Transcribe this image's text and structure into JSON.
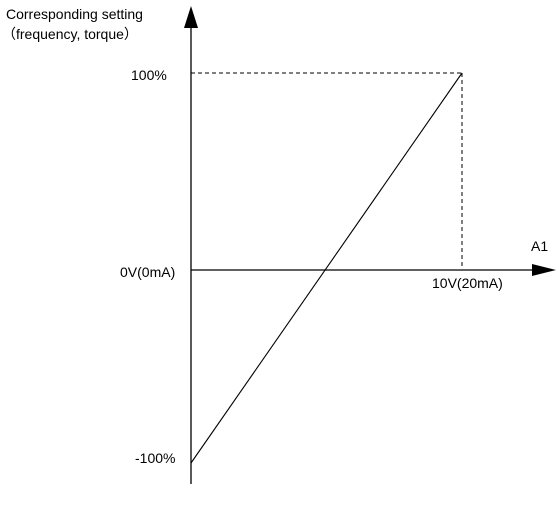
{
  "chart_data": {
    "type": "line",
    "ylabel_line1": "Corresponding setting",
    "ylabel_line2": "（frequency, torque）",
    "xlabel": "A1",
    "x_tick_labels": [
      "0V(0mA)",
      "10V(20mA)"
    ],
    "y_tick_labels": [
      "100%",
      "-100%"
    ],
    "x_range": [
      0,
      10
    ],
    "y_range": [
      -100,
      100
    ],
    "series": [
      {
        "x": [
          0,
          10
        ],
        "y": [
          -100,
          100
        ]
      }
    ],
    "guides": [
      {
        "from": [
          0,
          100
        ],
        "to": [
          10,
          100
        ]
      },
      {
        "from": [
          10,
          100
        ],
        "to": [
          10,
          0
        ]
      }
    ]
  }
}
